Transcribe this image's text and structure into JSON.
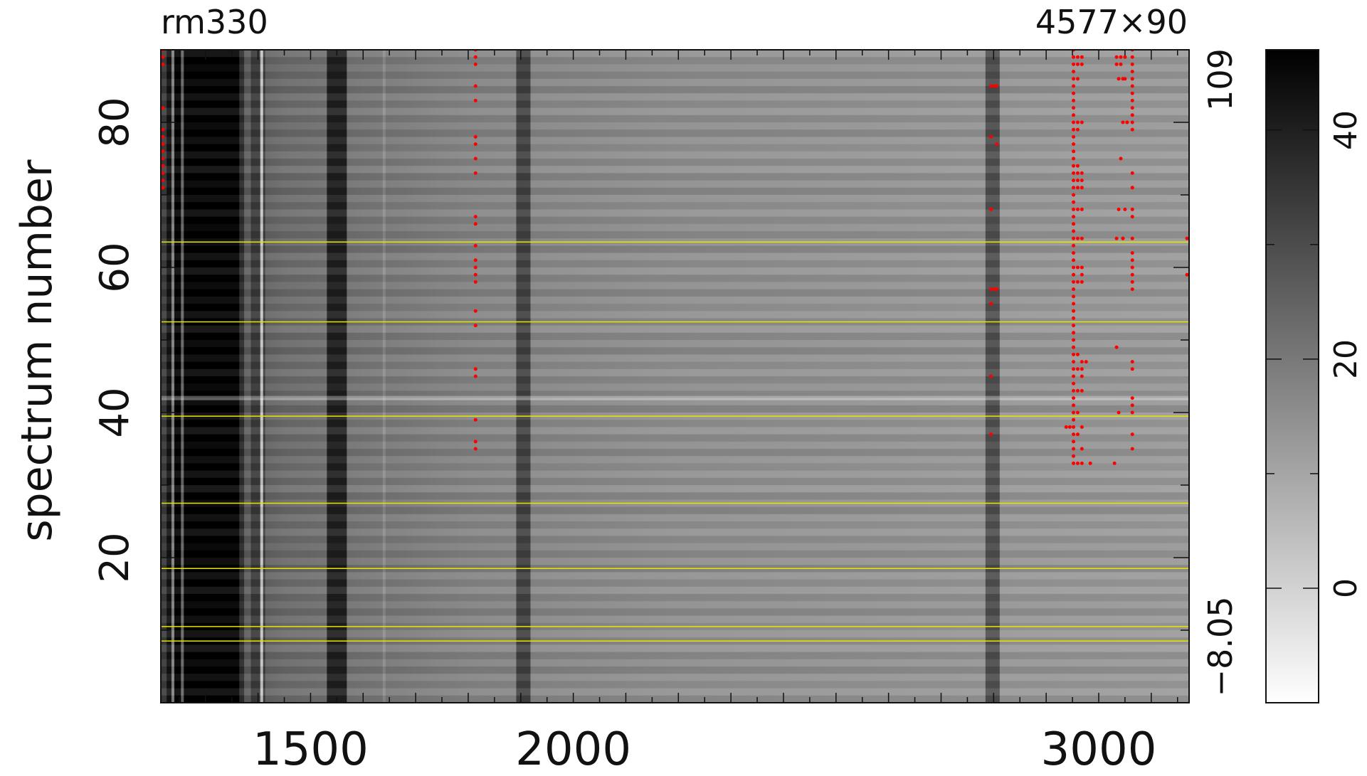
{
  "header": {
    "left_label": "rm330",
    "right_label": "4577×90"
  },
  "chart_data": {
    "type": "heatmap",
    "title": "",
    "xlabel": "",
    "ylabel": "spectrum number",
    "xlim": [
      1215,
      3172
    ],
    "ylim": [
      0,
      90
    ],
    "x_ticks": [
      1500,
      2000,
      3000
    ],
    "y_ticks": [
      20,
      40,
      60,
      80
    ],
    "colormap": "grayscale (white = low, black = high)",
    "colorbar": {
      "range": [
        -8.05,
        109
      ],
      "display_range": [
        -10,
        47
      ],
      "ticks": [
        0,
        20,
        40
      ],
      "range_labels": {
        "max": "109",
        "min": "−8.05"
      }
    },
    "highlighted_rows": [
      8.5,
      10.5,
      18.5,
      27.5,
      39.5,
      52.5,
      63.5
    ],
    "absorption_features": [
      {
        "x": 1245,
        "depth": 0.6
      },
      {
        "x": 1265,
        "depth": 0.55
      },
      {
        "x": 1300,
        "depth": 1.0
      },
      {
        "x": 1360,
        "depth": 0.35
      },
      {
        "x": 1400,
        "depth": 0.2
      },
      {
        "x": 1550,
        "depth": 0.65
      },
      {
        "x": 1905,
        "depth": 0.35
      },
      {
        "x": 2798,
        "depth": 0.3
      }
    ],
    "emission_features": [
      {
        "x": 1238,
        "strength": 0.5
      },
      {
        "x": 1256,
        "strength": 0.4
      },
      {
        "x": 1407,
        "strength": 0.7
      },
      {
        "x": 1640,
        "strength": 0.15
      }
    ],
    "bright_rows": [
      42
    ],
    "masked_points": {
      "x": [
        1219,
        1219,
        1219,
        1219,
        1219,
        1219,
        1219,
        1219,
        1219,
        1219,
        1219,
        1219,
        1219,
        1814,
        1814,
        1814,
        1814,
        1814,
        1814,
        1814,
        1814,
        1814,
        1814,
        1814,
        1814,
        1814,
        1814,
        1814,
        1814,
        1814,
        1814,
        1814,
        1814,
        1814,
        1814,
        1814,
        2795,
        2795,
        2795,
        2795,
        2795,
        2795,
        2795,
        2801,
        2806,
        2806,
        2801,
        2806,
        2952,
        2952,
        2952,
        2952,
        2952,
        2952,
        2952,
        2952,
        2952,
        2952,
        2952,
        2952,
        2952,
        2952,
        2952,
        2952,
        2952,
        2952,
        2952,
        2952,
        2952,
        2952,
        2952,
        2952,
        2952,
        2952,
        2952,
        2952,
        2952,
        2952,
        2952,
        2952,
        2952,
        2952,
        2952,
        2952,
        2952,
        2952,
        2952,
        2952,
        2952,
        2952,
        2952,
        2952,
        2952,
        2952,
        2952,
        2952,
        2952,
        2952,
        2952,
        2952,
        2952,
        2952,
        2952,
        2952,
        2952,
        2952,
        2960,
        2960,
        2960,
        2960,
        2960,
        2960,
        2960,
        2960,
        2960,
        2960,
        2960,
        2960,
        2960,
        2960,
        2960,
        2960,
        2960,
        2960,
        2960,
        2968,
        2968,
        2968,
        2968,
        2968,
        2968,
        2968,
        2968,
        2968,
        2968,
        2968,
        2968,
        2968,
        2968,
        2968,
        2968,
        2968,
        2968,
        2945,
        2938,
        2976,
        2984,
        3034,
        3042,
        3050,
        3034,
        3042,
        3050,
        3038,
        3046,
        3054,
        3046,
        3054,
        3042,
        3050,
        3038,
        3046,
        3046,
        3034,
        3034,
        3038,
        3030,
        3064,
        3064,
        3064,
        3064,
        3064,
        3064,
        3064,
        3064,
        3064,
        3064,
        3064,
        3064,
        3064,
        3064,
        3064,
        3064,
        3064,
        3064,
        3064,
        3064,
        3064,
        3064,
        3064,
        3064,
        3064,
        3064,
        3064,
        3064,
        3064,
        3064,
        3168,
        3168
      ],
      "y": [
        89,
        88,
        82,
        78,
        77,
        76,
        75,
        74,
        73,
        72,
        71,
        90,
        79,
        90,
        89,
        88,
        85,
        83,
        78,
        77,
        75,
        73,
        67,
        66,
        63,
        61,
        60,
        59,
        58,
        54,
        52,
        46,
        45,
        39,
        36,
        35,
        85,
        78,
        68,
        57,
        55,
        45,
        37,
        85,
        85,
        77,
        57,
        57,
        90,
        89,
        88,
        87,
        86,
        85,
        84,
        83,
        82,
        81,
        80,
        79,
        78,
        77,
        76,
        75,
        74,
        73,
        72,
        71,
        70,
        69,
        68,
        67,
        66,
        65,
        64,
        63,
        62,
        61,
        60,
        59,
        58,
        57,
        56,
        55,
        54,
        53,
        52,
        51,
        50,
        49,
        48,
        47,
        46,
        45,
        44,
        43,
        42,
        41,
        40,
        39,
        38,
        37,
        36,
        35,
        34,
        33,
        89,
        88,
        80,
        79,
        74,
        73,
        72,
        71,
        68,
        64,
        60,
        58,
        48,
        46,
        43,
        40,
        37,
        33,
        86,
        89,
        88,
        80,
        73,
        72,
        71,
        68,
        64,
        60,
        59,
        47,
        46,
        45,
        43,
        38,
        35,
        33,
        58,
        38,
        38,
        47,
        33,
        89,
        89,
        89,
        88,
        88,
        86,
        86,
        86,
        80,
        80,
        80,
        75,
        68,
        68,
        64,
        64,
        64,
        49,
        40,
        33,
        90,
        89,
        88,
        87,
        86,
        85,
        84,
        83,
        82,
        81,
        80,
        79,
        73,
        71,
        68,
        67,
        64,
        62,
        61,
        60,
        59,
        58,
        57,
        47,
        46,
        42,
        41,
        40,
        37,
        35,
        64,
        59
      ]
    }
  }
}
